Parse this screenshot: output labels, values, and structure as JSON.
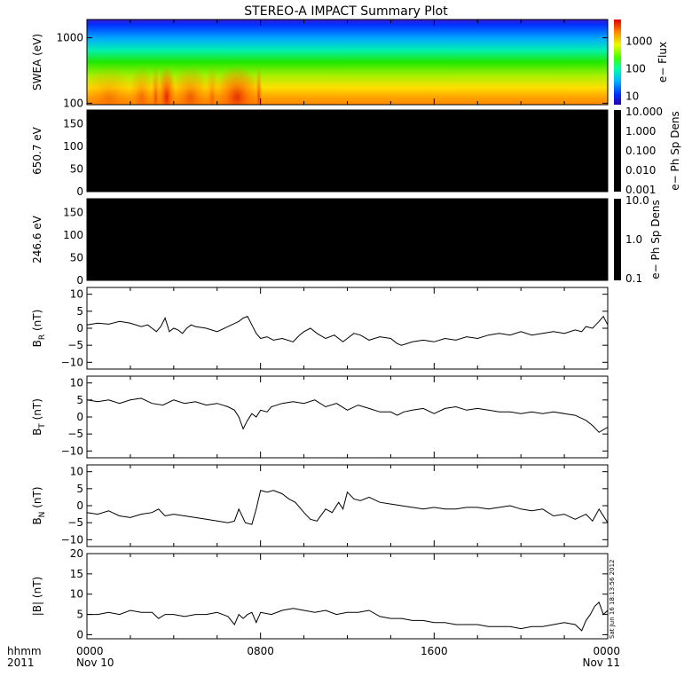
{
  "title": "STEREO-A IMPACT Summary Plot",
  "corner_label": {
    "line1": "hhmm",
    "line2": "2011"
  },
  "time_axis": {
    "ticks": [
      {
        "hour": 0,
        "time": "0000",
        "date": "Nov 10"
      },
      {
        "hour": 8,
        "time": "0800",
        "date": ""
      },
      {
        "hour": 16,
        "time": "1600",
        "date": ""
      },
      {
        "hour": 24,
        "time": "0000",
        "date": "Nov 11"
      }
    ]
  },
  "stamp": "Sat Jun 16 18:13:56 2012",
  "chart_data": [
    {
      "type": "heatmap",
      "panel": "swea",
      "ylabel": "SWEA (eV)",
      "yscale": "log",
      "ylim": [
        95,
        1900
      ],
      "yticks": [
        "1000",
        "100"
      ],
      "colorbar": {
        "label": "e− Flux",
        "scale": "log",
        "range": [
          5,
          6000
        ],
        "ticks": [
          "1000",
          "100",
          "10"
        ]
      },
      "description_values": {
        "hours": [
          0,
          2,
          3,
          3.3,
          4,
          5.5,
          6,
          7.8,
          8,
          12,
          16,
          20,
          24
        ],
        "relative_intensity": [
          0.7,
          0.75,
          0.85,
          1.0,
          0.8,
          0.75,
          0.95,
          0.9,
          0.55,
          0.5,
          0.5,
          0.55,
          0.55
        ]
      }
    },
    {
      "type": "heatmap",
      "panel": "pad-650",
      "ylabel": "650.7 eV",
      "ylim": [
        0,
        180
      ],
      "yticks": [
        "150",
        "100",
        "50",
        "0"
      ],
      "colorbar": {
        "label": "e− Ph Sp Dens",
        "scale": "log",
        "ticks": [
          "10.000",
          "1.000",
          "0.100",
          "0.010",
          "0.001"
        ]
      },
      "fill": "no data (black)"
    },
    {
      "type": "heatmap",
      "panel": "pad-246",
      "ylabel": "246.6 eV",
      "ylim": [
        0,
        180
      ],
      "yticks": [
        "150",
        "100",
        "50",
        "0"
      ],
      "colorbar": {
        "label": "e− Ph Sp Dens",
        "scale": "log",
        "ticks": [
          "10.0",
          "1.0",
          "0.1"
        ]
      },
      "fill": "no data (black)"
    },
    {
      "type": "line",
      "panel": "br",
      "ylabel": "B",
      "ylabel_sub": "R",
      "ylabel_unit": " (nT)",
      "ylim": [
        -12,
        12
      ],
      "yticks": [
        "10",
        "5",
        "0",
        "−5",
        "−10"
      ],
      "x": [
        0,
        0.5,
        1,
        1.5,
        2,
        2.5,
        2.8,
        3,
        3.2,
        3.4,
        3.6,
        3.8,
        4,
        4.2,
        4.4,
        4.6,
        4.8,
        5,
        5.5,
        6,
        6.5,
        7,
        7.2,
        7.4,
        7.6,
        7.8,
        8,
        8.3,
        8.6,
        9,
        9.5,
        9.8,
        10,
        10.3,
        10.6,
        11,
        11.4,
        11.8,
        12,
        12.3,
        12.6,
        13,
        13.5,
        14,
        14.3,
        14.5,
        15,
        15.5,
        16,
        16.5,
        17,
        17.5,
        18,
        18.5,
        19,
        19.5,
        20,
        20.5,
        21,
        21.5,
        22,
        22.5,
        22.8,
        23,
        23.3,
        23.6,
        23.8,
        24
      ],
      "y": [
        1,
        1.5,
        1.2,
        2,
        1.5,
        0.5,
        1,
        0,
        -1,
        0.5,
        3,
        -1,
        0,
        -0.5,
        -1.5,
        0,
        1,
        0.5,
        0,
        -1,
        0.5,
        2,
        3,
        3.5,
        1,
        -1.5,
        -3,
        -2.5,
        -3.5,
        -3,
        -4,
        -2,
        -1,
        0,
        -1.5,
        -3,
        -2,
        -4,
        -3,
        -1.5,
        -2,
        -3.5,
        -2.5,
        -3,
        -4.5,
        -5,
        -4,
        -3.5,
        -4,
        -3,
        -3.5,
        -2.5,
        -3,
        -2,
        -1.5,
        -2,
        -1,
        -2,
        -1.5,
        -1,
        -1.5,
        -0.5,
        -1,
        0.5,
        0,
        2,
        3.5,
        1
      ]
    },
    {
      "type": "line",
      "panel": "bt",
      "ylabel": "B",
      "ylabel_sub": "T",
      "ylabel_unit": " (nT)",
      "ylim": [
        -12,
        12
      ],
      "yticks": [
        "10",
        "5",
        "0",
        "−5",
        "−10"
      ],
      "x": [
        0,
        0.5,
        1,
        1.5,
        2,
        2.5,
        3,
        3.5,
        4,
        4.5,
        5,
        5.5,
        6,
        6.5,
        6.8,
        7,
        7.2,
        7.4,
        7.6,
        7.8,
        8,
        8.3,
        8.5,
        9,
        9.5,
        10,
        10.5,
        11,
        11.5,
        12,
        12.5,
        13,
        13.5,
        14,
        14.3,
        14.6,
        15,
        15.5,
        16,
        16.5,
        17,
        17.5,
        18,
        18.5,
        19,
        19.5,
        20,
        20.5,
        21,
        21.5,
        22,
        22.5,
        23,
        23.3,
        23.6,
        24
      ],
      "y": [
        5,
        4.5,
        5,
        4,
        5,
        5.5,
        4,
        3.5,
        5,
        4,
        4.5,
        3.5,
        4,
        3,
        2,
        0,
        -3.5,
        -1,
        1,
        0,
        2,
        1.5,
        3,
        4,
        4.5,
        4,
        5,
        3,
        4,
        2,
        3.5,
        2.5,
        1.5,
        1.5,
        0.5,
        1.5,
        2,
        2.5,
        1,
        2.5,
        3,
        2,
        2.5,
        2,
        1.5,
        1.5,
        1,
        1.5,
        1,
        1.5,
        1,
        0.5,
        -1,
        -2.5,
        -4.5,
        -3
      ]
    },
    {
      "type": "line",
      "panel": "bn",
      "ylabel": "B",
      "ylabel_sub": "N",
      "ylabel_unit": " (nT)",
      "ylim": [
        -12,
        12
      ],
      "yticks": [
        "10",
        "5",
        "0",
        "−5",
        "−10"
      ],
      "x": [
        0,
        0.5,
        1,
        1.5,
        2,
        2.5,
        3,
        3.3,
        3.6,
        4,
        4.5,
        5,
        5.5,
        6,
        6.5,
        6.8,
        7,
        7.3,
        7.6,
        7.8,
        8,
        8.3,
        8.6,
        9,
        9.3,
        9.6,
        10,
        10.3,
        10.6,
        11,
        11.3,
        11.6,
        11.8,
        12,
        12.3,
        12.6,
        13,
        13.5,
        14,
        14.5,
        15,
        15.5,
        16,
        16.5,
        17,
        17.5,
        18,
        18.5,
        19,
        19.5,
        20,
        20.5,
        21,
        21.5,
        22,
        22.5,
        23,
        23.3,
        23.6,
        24
      ],
      "y": [
        -2,
        -2.5,
        -1.5,
        -3,
        -3.5,
        -2.5,
        -2,
        -1,
        -3,
        -2.5,
        -3,
        -3.5,
        -4,
        -4.5,
        -5,
        -4.5,
        -1,
        -5,
        -5.5,
        -1,
        4.5,
        4,
        4.5,
        3.5,
        2,
        1,
        -2,
        -4,
        -4.5,
        -1,
        -2,
        1,
        -1,
        4,
        2,
        1.5,
        2.5,
        1,
        0.5,
        0,
        -0.5,
        -1,
        -0.5,
        -1,
        -1,
        -0.5,
        -0.5,
        -1,
        -0.5,
        0,
        -1,
        -1.5,
        -1,
        -3,
        -2.5,
        -4,
        -2.5,
        -4.5,
        -1,
        -5
      ]
    },
    {
      "type": "line",
      "panel": "bmag",
      "ylabel": "|B| (nT)",
      "ylim": [
        -1,
        20
      ],
      "yticks": [
        "20",
        "15",
        "10",
        "5",
        "0"
      ],
      "x": [
        0,
        0.5,
        1,
        1.5,
        2,
        2.5,
        3,
        3.3,
        3.6,
        4,
        4.5,
        5,
        5.5,
        6,
        6.5,
        6.8,
        7,
        7.2,
        7.4,
        7.6,
        7.8,
        8,
        8.5,
        9,
        9.5,
        10,
        10.5,
        11,
        11.5,
        12,
        12.5,
        13,
        13.5,
        14,
        14.5,
        15,
        15.5,
        16,
        16.5,
        17,
        17.5,
        18,
        18.5,
        19,
        19.5,
        20,
        20.5,
        21,
        21.5,
        22,
        22.5,
        22.8,
        23,
        23.2,
        23.4,
        23.6,
        23.8,
        24
      ],
      "y": [
        5,
        5,
        5.5,
        5,
        6,
        5.5,
        5.5,
        4,
        5,
        5,
        4.5,
        5,
        5,
        5.5,
        4.5,
        2.5,
        5,
        4,
        5,
        5.5,
        3,
        5.5,
        5,
        6,
        6.5,
        6,
        5.5,
        6,
        5,
        5.5,
        5.5,
        6,
        4.5,
        4,
        4,
        3.5,
        3.5,
        3,
        3,
        2.5,
        2.5,
        2.5,
        2,
        2,
        2,
        1.5,
        2,
        2,
        2.5,
        3,
        2.5,
        1,
        3.5,
        5,
        7,
        8,
        5,
        6
      ]
    }
  ]
}
